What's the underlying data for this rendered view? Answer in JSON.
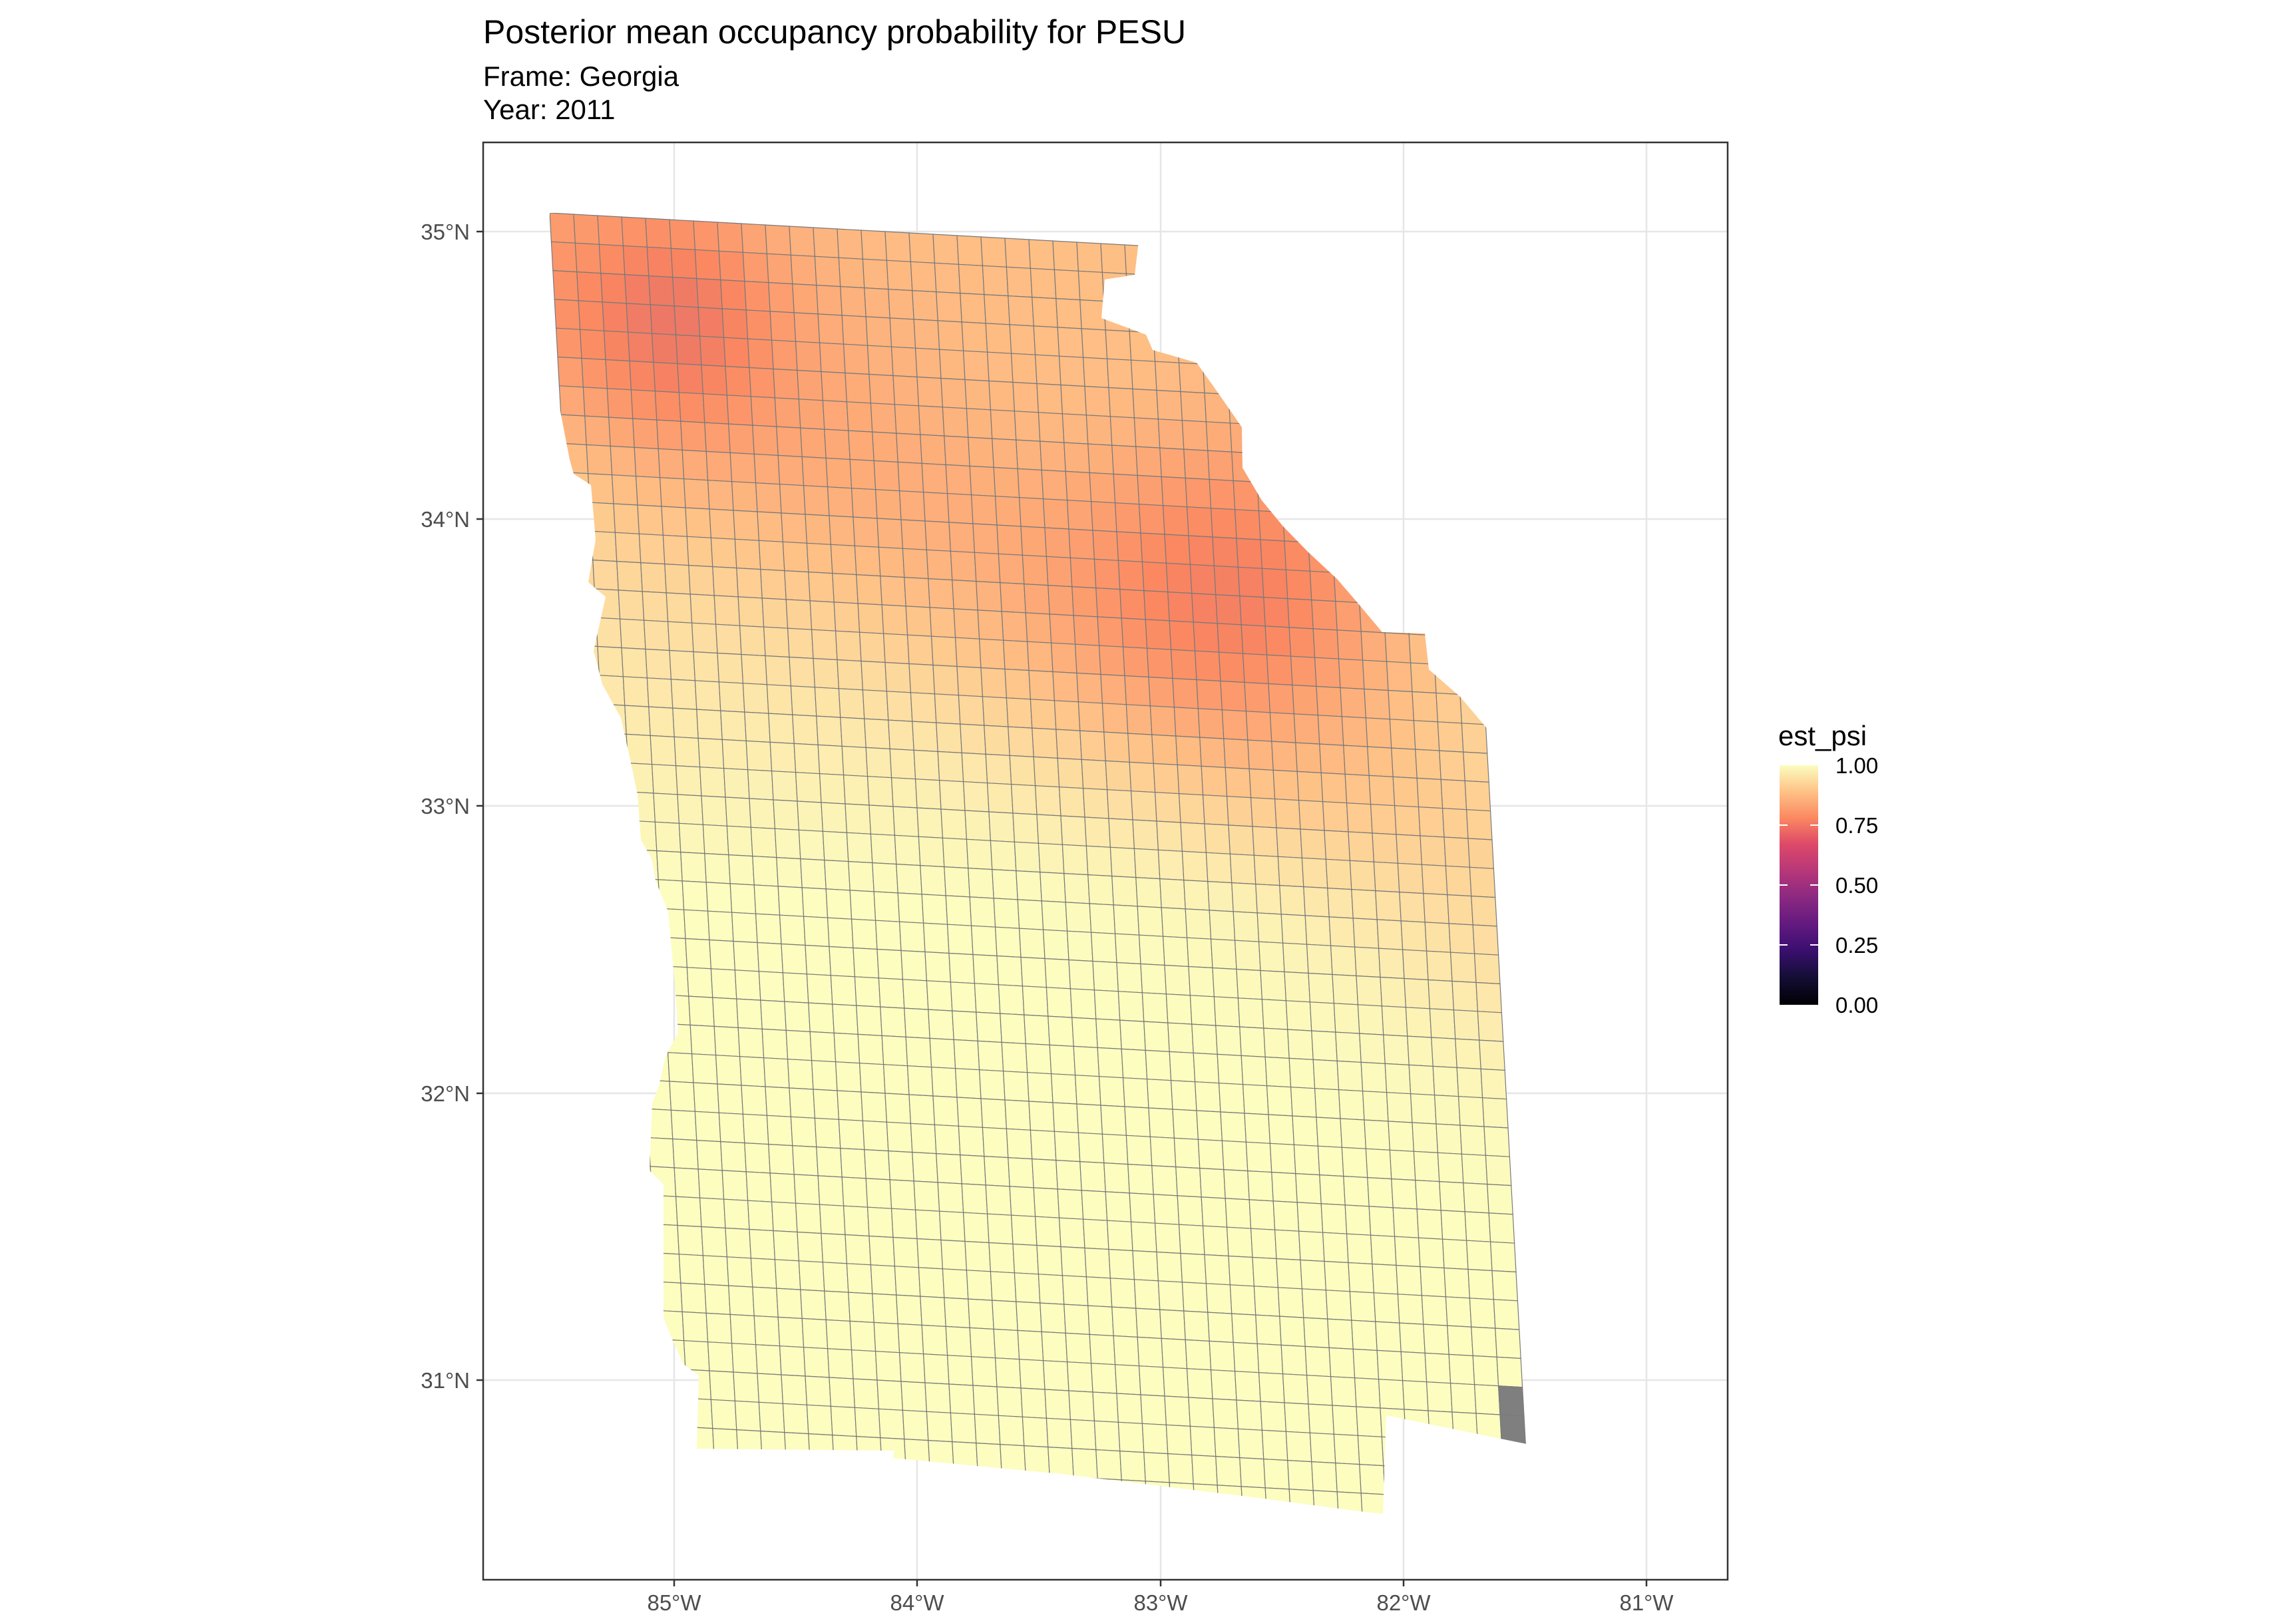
{
  "title": "Posterior mean occupancy probability for PESU",
  "subtitle": [
    "Frame: Georgia",
    "Year: 2011"
  ],
  "map": {
    "region": "Georgia",
    "fill_variable": "est_psi",
    "lon_range": [
      -85.8,
      -80.65
    ],
    "lat_range": [
      30.35,
      35.3
    ],
    "lon_ticks": [
      "85°W",
      "84°W",
      "83°W",
      "82°W",
      "81°W"
    ],
    "lat_ticks": [
      "35°N",
      "34°N",
      "33°N",
      "32°N",
      "31°N"
    ],
    "grid": true,
    "cell_count_approx": 1100,
    "missing_cells_color": "#7f7f7f",
    "pattern": "near 1.00 across the south; lower values (about 0.70-0.80) in the northeast along the eastern edge; missing (grey) cells along the southeast coast"
  },
  "legend": {
    "title": "est_psi",
    "labels": [
      "1.00",
      "0.75",
      "0.50",
      "0.25",
      "0.00"
    ],
    "palette": [
      "#fcfdbf",
      "#fec287",
      "#fb8861",
      "#de4968",
      "#b73779",
      "#8c2981",
      "#641a80",
      "#3b0f70",
      "#150e37",
      "#000004"
    ]
  }
}
